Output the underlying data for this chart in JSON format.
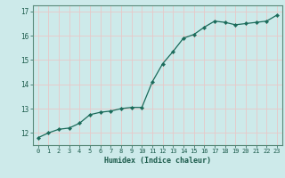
{
  "x": [
    0,
    1,
    2,
    3,
    4,
    5,
    6,
    7,
    8,
    9,
    10,
    11,
    12,
    13,
    14,
    15,
    16,
    17,
    18,
    19,
    20,
    21,
    22,
    23
  ],
  "y": [
    11.8,
    12.0,
    12.15,
    12.2,
    12.4,
    12.75,
    12.85,
    12.9,
    13.0,
    13.05,
    13.05,
    14.1,
    14.85,
    15.35,
    15.9,
    16.05,
    16.35,
    16.6,
    16.55,
    16.45,
    16.5,
    16.55,
    16.6,
    16.85
  ],
  "xlabel": "Humidex (Indice chaleur)",
  "ylim": [
    11.5,
    17.25
  ],
  "xlim": [
    -0.5,
    23.5
  ],
  "bg_color": "#cdeaea",
  "line_color": "#1a6b5a",
  "marker_color": "#1a6b5a",
  "grid_color": "#e8c8c8",
  "axis_color": "#5a8a7a",
  "tick_color": "#1a5a4a",
  "label_color": "#1a5a4a",
  "font_family": "monospace",
  "yticks": [
    12,
    13,
    14,
    15,
    16,
    17
  ],
  "xticks": [
    0,
    1,
    2,
    3,
    4,
    5,
    6,
    7,
    8,
    9,
    10,
    11,
    12,
    13,
    14,
    15,
    16,
    17,
    18,
    19,
    20,
    21,
    22,
    23
  ]
}
